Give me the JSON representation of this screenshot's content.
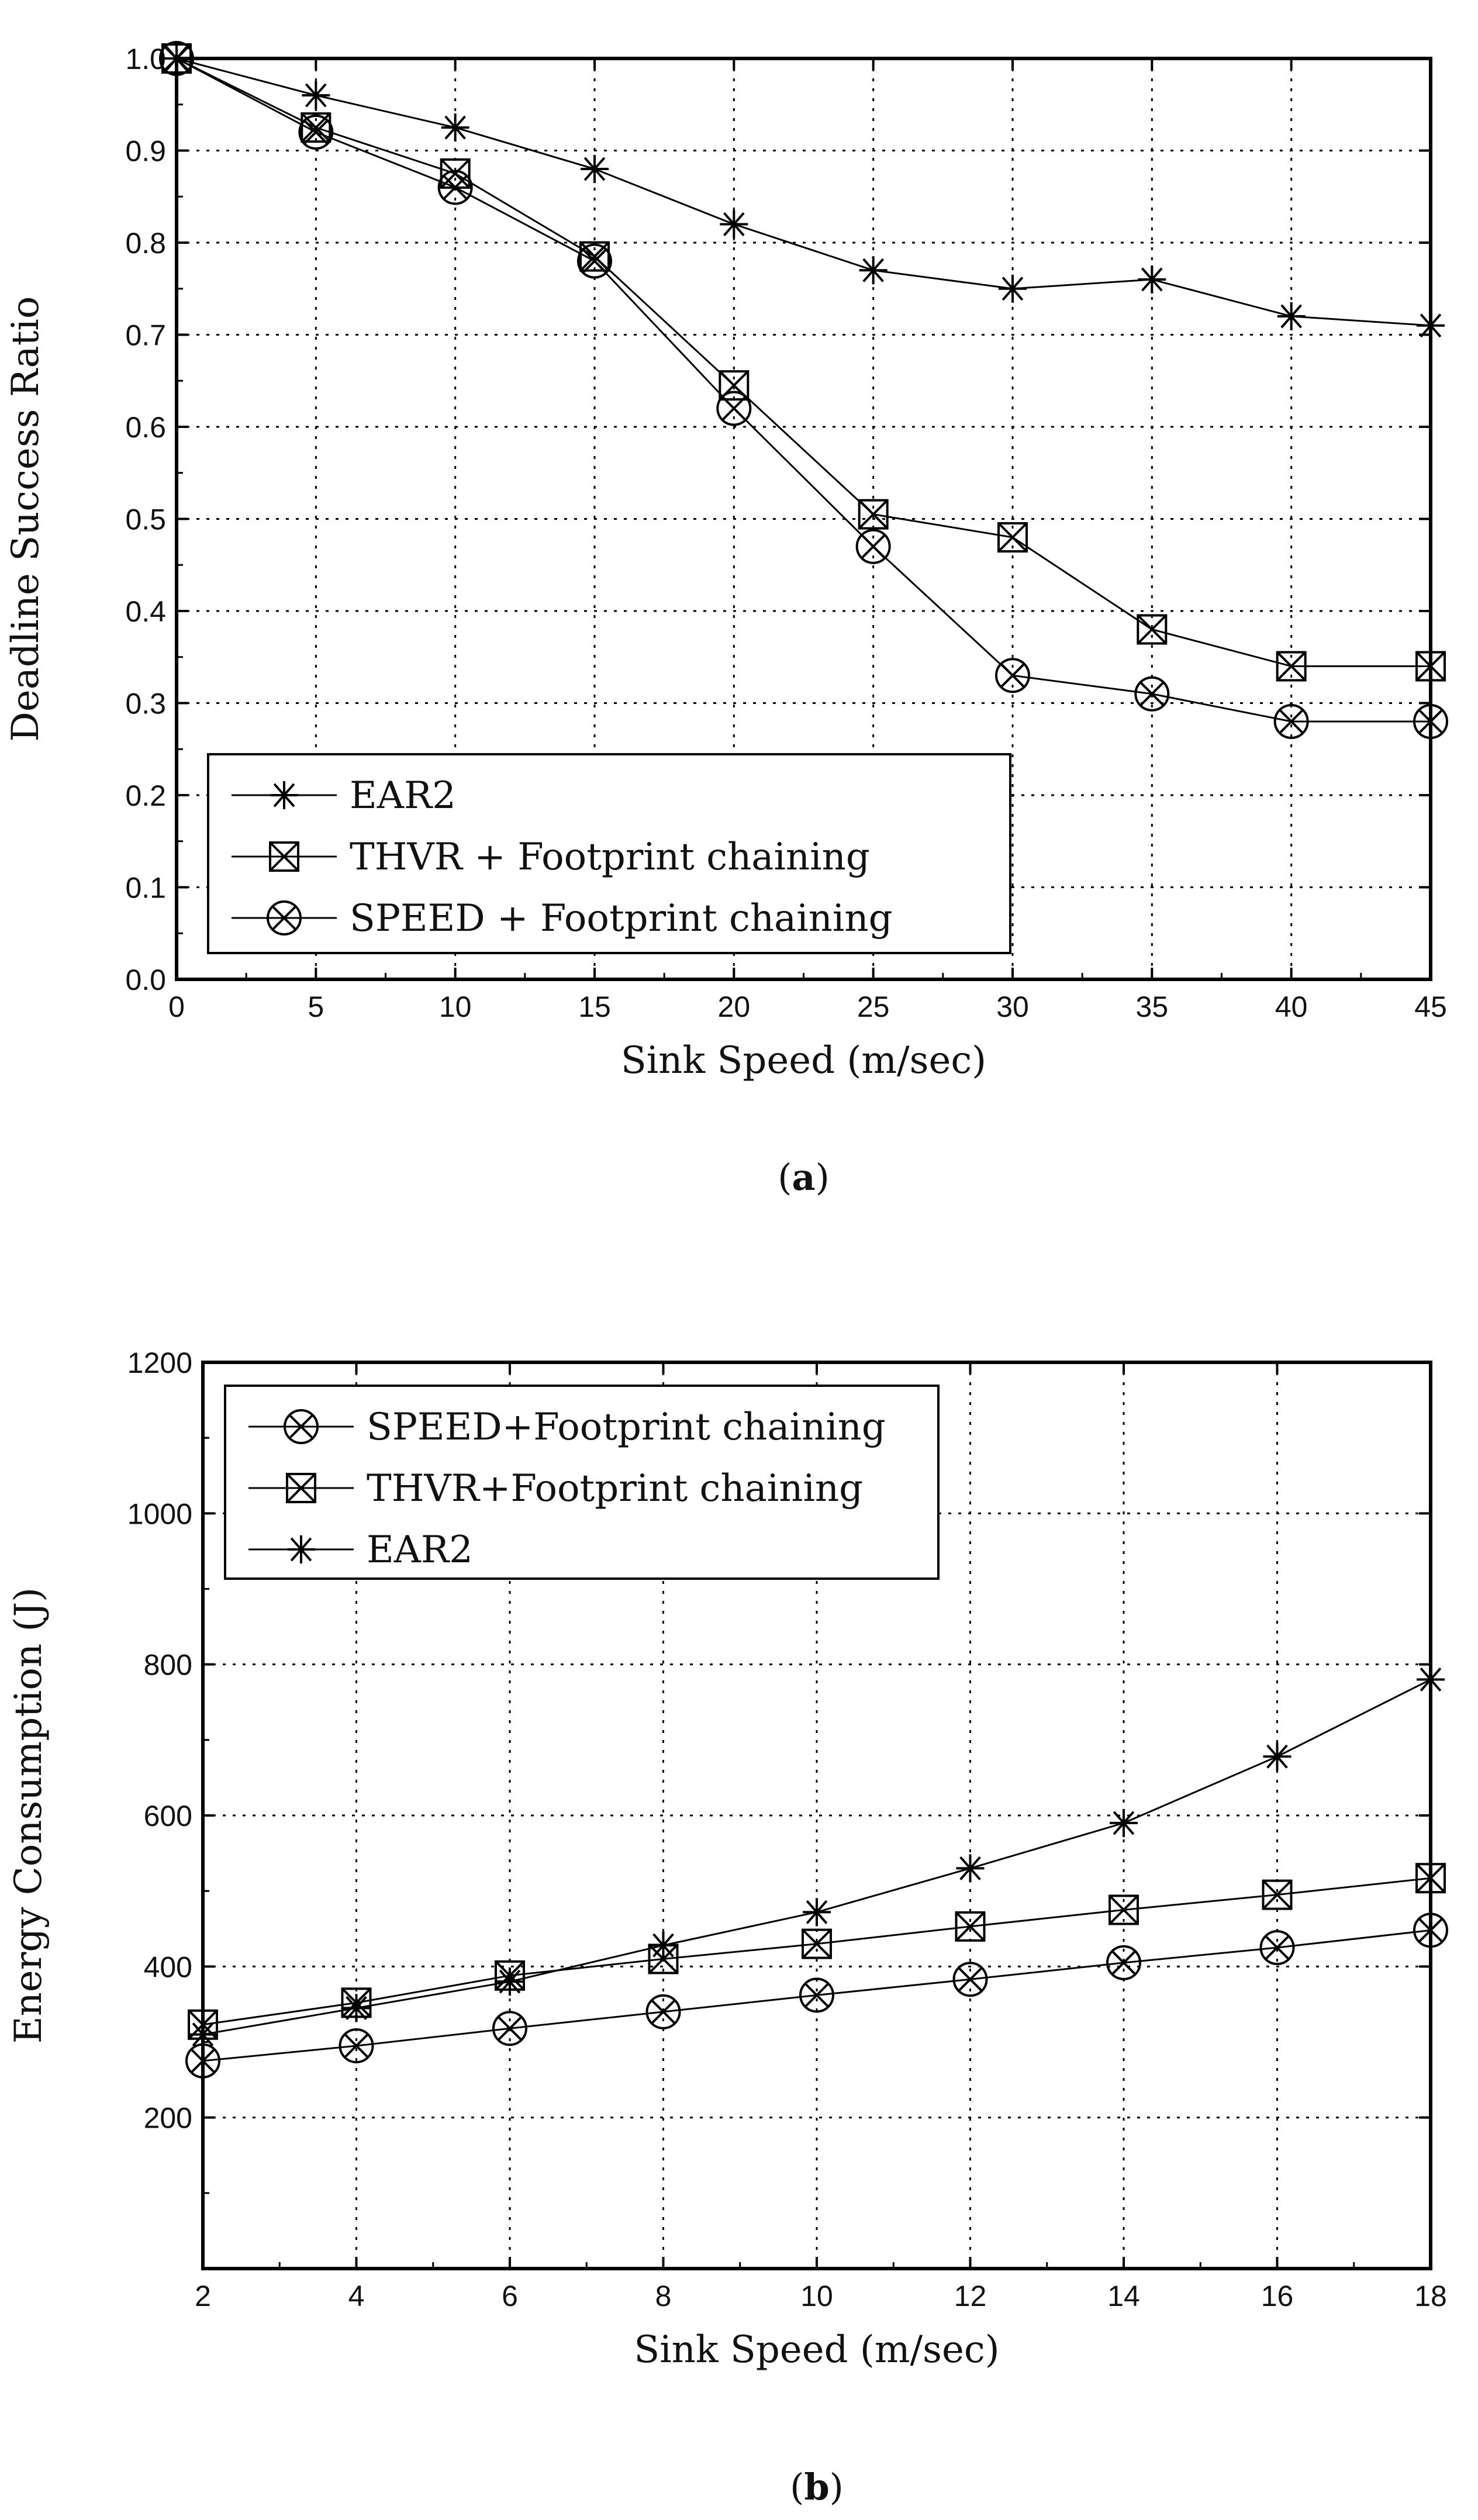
{
  "chart_data": [
    {
      "type": "line",
      "panel": "a",
      "caption_letter": "a",
      "caption_open": "(",
      "caption_close": ")",
      "xlabel": "Sink Speed (m/sec)",
      "ylabel": "Deadline Success Ratio",
      "xlim": [
        0,
        45
      ],
      "ylim": [
        0.0,
        1.0
      ],
      "xticks": [
        0,
        5,
        10,
        15,
        20,
        25,
        30,
        35,
        40,
        45
      ],
      "xtick_labels": [
        "0",
        "5",
        "10",
        "15",
        "20",
        "25",
        "30",
        "35",
        "40",
        "45"
      ],
      "yticks": [
        0.0,
        0.1,
        0.2,
        0.3,
        0.4,
        0.5,
        0.6,
        0.7,
        0.8,
        0.9,
        1.0
      ],
      "ytick_labels": [
        "0.0",
        "0.1",
        "0.2",
        "0.3",
        "0.4",
        "0.5",
        "0.6",
        "0.7",
        "0.8",
        "0.9",
        "1.0"
      ],
      "grid": true,
      "legend_position": "bottom-left",
      "x": [
        0,
        5,
        10,
        15,
        20,
        25,
        30,
        35,
        40,
        45
      ],
      "series": [
        {
          "name": "EAR2",
          "marker": "star",
          "values": [
            1.0,
            0.96,
            0.925,
            0.88,
            0.82,
            0.77,
            0.75,
            0.76,
            0.72,
            0.71
          ]
        },
        {
          "name": "THVR + Footprint chaining",
          "marker": "boxed-x",
          "values": [
            1.0,
            0.925,
            0.875,
            0.785,
            0.645,
            0.505,
            0.48,
            0.38,
            0.34,
            0.34
          ]
        },
        {
          "name": "SPEED + Footprint chaining",
          "marker": "circled-x",
          "values": [
            1.0,
            0.92,
            0.86,
            0.78,
            0.62,
            0.47,
            0.33,
            0.31,
            0.28,
            0.28
          ]
        }
      ]
    },
    {
      "type": "line",
      "panel": "b",
      "caption_letter": "b",
      "caption_open": "(",
      "caption_close": ")",
      "xlabel": "Sink Speed (m/sec)",
      "ylabel": "Energy Consumption (J)",
      "xlim": [
        2,
        18
      ],
      "ylim": [
        0,
        1200
      ],
      "xticks": [
        2,
        4,
        6,
        8,
        10,
        12,
        14,
        16,
        18
      ],
      "xtick_labels": [
        "2",
        "4",
        "6",
        "8",
        "10",
        "12",
        "14",
        "16",
        "18"
      ],
      "yticks": [
        200,
        400,
        600,
        800,
        1000,
        1200
      ],
      "ytick_labels": [
        "200",
        "400",
        "600",
        "800",
        "1000",
        "1200"
      ],
      "grid": true,
      "legend_position": "top-left",
      "x": [
        2,
        4,
        6,
        8,
        10,
        12,
        14,
        16,
        18
      ],
      "series": [
        {
          "name": "SPEED+Footprint chaining",
          "marker": "circled-x",
          "values": [
            275,
            295,
            318,
            340,
            362,
            383,
            405,
            425,
            448
          ]
        },
        {
          "name": "THVR+Footprint chaining",
          "marker": "boxed-x",
          "values": [
            323,
            352,
            388,
            410,
            430,
            453,
            475,
            495,
            517
          ]
        },
        {
          "name": "EAR2",
          "marker": "star",
          "values": [
            310,
            345,
            380,
            428,
            472,
            530,
            590,
            678,
            780
          ]
        }
      ]
    }
  ]
}
